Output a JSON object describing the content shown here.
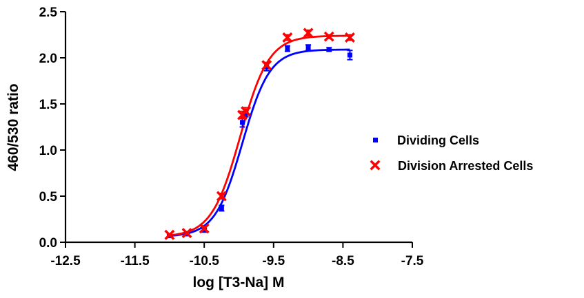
{
  "chart_data": {
    "type": "scatter",
    "title": "",
    "xlabel": "log [T3-Na] M",
    "ylabel": "460/530  ratio",
    "xlim": [
      -12.5,
      -7.5
    ],
    "ylim": [
      0.0,
      2.5
    ],
    "xticks": [
      -12.5,
      -11.5,
      -10.5,
      -9.5,
      -8.5,
      -7.5
    ],
    "yticks": [
      0.0,
      0.5,
      1.0,
      1.5,
      2.0,
      2.5
    ],
    "xtick_labels": [
      "-12.5",
      "-11.5",
      "-10.5",
      "-9.5",
      "-8.5",
      "-7.5"
    ],
    "ytick_labels": [
      "0.0",
      "0.5",
      "1.0",
      "1.5",
      "2.0",
      "2.5"
    ],
    "grid": false,
    "legend_position": "right",
    "series": [
      {
        "name": "Dividing Cells",
        "marker": "square",
        "color": "#0000ff",
        "x": [
          -11.0,
          -10.75,
          -10.5,
          -10.25,
          -9.95,
          -9.9,
          -9.6,
          -9.3,
          -9.0,
          -8.7,
          -8.4
        ],
        "y": [
          0.07,
          0.09,
          0.13,
          0.37,
          1.3,
          1.4,
          1.9,
          2.1,
          2.11,
          2.09,
          2.03
        ],
        "yerr": [
          0.01,
          0.01,
          0.02,
          0.03,
          0.05,
          0.04,
          0.04,
          0.03,
          0.03,
          0.02,
          0.05
        ],
        "fit": {
          "bottom": 0.06,
          "top": 2.09,
          "logEC50": -9.95,
          "hill": 2.2
        }
      },
      {
        "name": "Division Arrested Cells",
        "marker": "x",
        "color": "#ff0000",
        "x": [
          -11.0,
          -10.75,
          -10.5,
          -10.25,
          -9.95,
          -9.9,
          -9.6,
          -9.3,
          -9.0,
          -8.7,
          -8.4
        ],
        "y": [
          0.08,
          0.1,
          0.15,
          0.5,
          1.38,
          1.42,
          1.92,
          2.22,
          2.27,
          2.23,
          2.22
        ],
        "yerr": [
          0.01,
          0.01,
          0.02,
          0.03,
          0.04,
          0.04,
          0.03,
          0.03,
          0.03,
          0.02,
          0.03
        ],
        "fit": {
          "bottom": 0.06,
          "top": 2.24,
          "logEC50": -9.98,
          "hill": 2.1
        }
      }
    ]
  }
}
